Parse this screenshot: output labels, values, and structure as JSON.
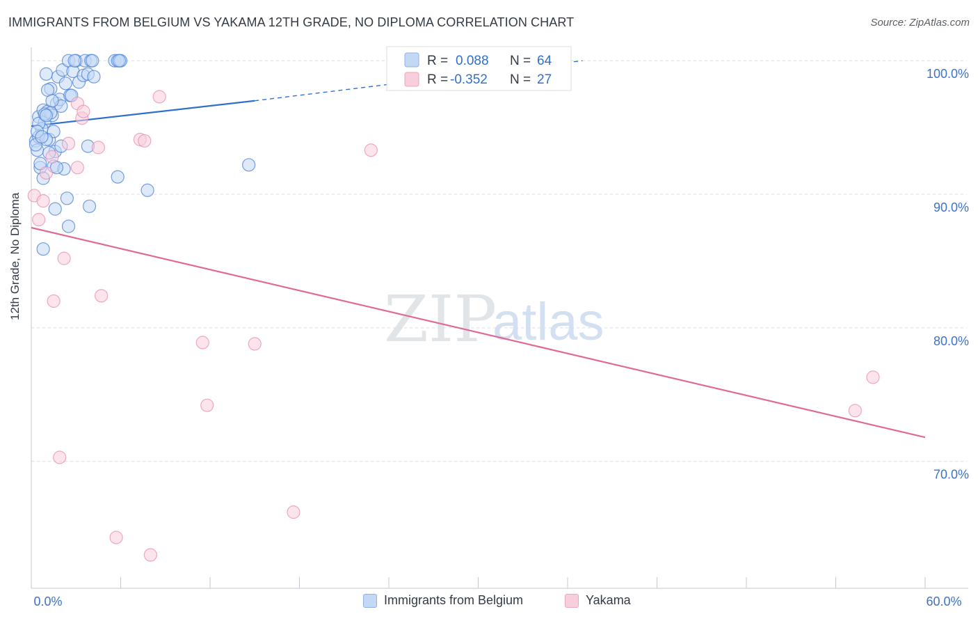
{
  "title": "IMMIGRANTS FROM BELGIUM VS YAKAMA 12TH GRADE, NO DIPLOMA CORRELATION CHART",
  "source": "Source: ZipAtlas.com",
  "watermark": {
    "zip": "ZIP",
    "atlas": "atlas"
  },
  "colors": {
    "blue": "#4a7fd4",
    "blue_fill": "#c3d8f5",
    "blue_line": "#2f6fcf",
    "pink": "#e98db0",
    "pink_fill": "#f8cedd",
    "pink_line": "#e06a93",
    "tick_label": "#3d72c8",
    "grid": "#d8dce2"
  },
  "legend_top": [
    {
      "r_label": "R =",
      "r_value": "0.088",
      "n_label": "N =",
      "n_value": "64"
    },
    {
      "r_label": "R =",
      "r_value": "-0.352",
      "n_label": "N =",
      "n_value": "27"
    }
  ],
  "legend_bottom": [
    "Immigrants from Belgium",
    "Yakama"
  ],
  "chart_data": {
    "type": "scatter",
    "title": "IMMIGRANTS FROM BELGIUM VS YAKAMA 12TH GRADE, NO DIPLOMA CORRELATION CHART",
    "xlabel": "",
    "ylabel": "12th Grade, No Diploma",
    "xlim": [
      0,
      60
    ],
    "ylim": [
      60.5,
      101
    ],
    "x_tick_labels": [
      {
        "value": 0,
        "label": "0.0%"
      },
      {
        "value": 60,
        "label": "60.0%"
      }
    ],
    "y_ticks": [
      {
        "value": 100,
        "label": "100.0%"
      },
      {
        "value": 90,
        "label": "90.0%"
      },
      {
        "value": 80,
        "label": "80.0%"
      },
      {
        "value": 70,
        "label": "70.0%"
      }
    ],
    "x_minor_ticks": [
      0,
      6,
      12,
      18,
      24,
      30,
      36,
      42,
      48,
      54,
      60
    ],
    "series": [
      {
        "name": "Immigrants from Belgium",
        "R": 0.088,
        "N": 64,
        "trend": {
          "x0": 0,
          "y0": 95.1,
          "x1": 15,
          "y1": 97.0,
          "dash_to_x": 37,
          "dash_to_y": 100
        },
        "points": [
          [
            0.3,
            94.0
          ],
          [
            0.5,
            95.8
          ],
          [
            0.4,
            93.3
          ],
          [
            0.6,
            92.0
          ],
          [
            0.8,
            96.3
          ],
          [
            0.9,
            95.4
          ],
          [
            0.7,
            94.9
          ],
          [
            0.5,
            94.3
          ],
          [
            1.0,
            99.0
          ],
          [
            1.1,
            96.2
          ],
          [
            1.2,
            94.1
          ],
          [
            1.3,
            97.9
          ],
          [
            1.4,
            95.9
          ],
          [
            1.5,
            94.7
          ],
          [
            1.6,
            93.2
          ],
          [
            1.7,
            96.8
          ],
          [
            1.8,
            98.8
          ],
          [
            1.9,
            97.1
          ],
          [
            2.0,
            96.6
          ],
          [
            2.1,
            99.3
          ],
          [
            2.3,
            98.3
          ],
          [
            2.5,
            100.0
          ],
          [
            2.6,
            97.4
          ],
          [
            2.8,
            99.2
          ],
          [
            3.0,
            100.0
          ],
          [
            3.2,
            98.4
          ],
          [
            3.5,
            98.9
          ],
          [
            3.6,
            100.0
          ],
          [
            3.8,
            99.0
          ],
          [
            4.0,
            100.0
          ],
          [
            4.2,
            98.8
          ],
          [
            5.6,
            100.0
          ],
          [
            5.8,
            100.0
          ],
          [
            6.0,
            100.0
          ],
          [
            1.0,
            94.1
          ],
          [
            1.2,
            93.1
          ],
          [
            0.8,
            91.2
          ],
          [
            1.5,
            92.1
          ],
          [
            2.2,
            91.9
          ],
          [
            2.4,
            89.7
          ],
          [
            1.6,
            88.9
          ],
          [
            3.9,
            89.1
          ],
          [
            2.5,
            87.6
          ],
          [
            0.8,
            85.9
          ],
          [
            5.8,
            91.3
          ],
          [
            7.8,
            90.3
          ],
          [
            14.6,
            92.2
          ],
          [
            3.8,
            93.6
          ],
          [
            0.3,
            93.7
          ],
          [
            0.5,
            95.3
          ],
          [
            1.1,
            97.8
          ],
          [
            1.3,
            96.1
          ],
          [
            2.7,
            97.4
          ],
          [
            4.1,
            100.0
          ],
          [
            5.9,
            100.0
          ],
          [
            2.0,
            93.6
          ],
          [
            0.6,
            92.3
          ],
          [
            1.7,
            92.0
          ],
          [
            0.9,
            96.0
          ],
          [
            1.4,
            97.0
          ],
          [
            0.4,
            94.7
          ],
          [
            2.9,
            100.0
          ],
          [
            0.7,
            94.3
          ],
          [
            1.0,
            95.9
          ]
        ]
      },
      {
        "name": "Yakama",
        "R": -0.352,
        "N": 27,
        "trend": {
          "x0": 0,
          "y0": 87.5,
          "x1": 60,
          "y1": 71.8
        },
        "points": [
          [
            0.2,
            89.9
          ],
          [
            0.5,
            88.1
          ],
          [
            1.0,
            91.6
          ],
          [
            1.4,
            92.8
          ],
          [
            0.8,
            89.5
          ],
          [
            3.1,
            96.8
          ],
          [
            3.4,
            95.7
          ],
          [
            3.5,
            96.2
          ],
          [
            2.5,
            93.8
          ],
          [
            3.1,
            92.0
          ],
          [
            4.5,
            93.5
          ],
          [
            7.3,
            94.1
          ],
          [
            7.6,
            94.0
          ],
          [
            8.6,
            97.3
          ],
          [
            22.8,
            93.3
          ],
          [
            2.2,
            85.2
          ],
          [
            1.5,
            82.0
          ],
          [
            4.7,
            82.4
          ],
          [
            11.5,
            78.9
          ],
          [
            15.0,
            78.8
          ],
          [
            11.8,
            74.2
          ],
          [
            56.5,
            76.3
          ],
          [
            55.3,
            73.8
          ],
          [
            1.9,
            70.3
          ],
          [
            17.6,
            66.2
          ],
          [
            5.7,
            64.3
          ],
          [
            8.0,
            63.0
          ]
        ]
      }
    ]
  }
}
